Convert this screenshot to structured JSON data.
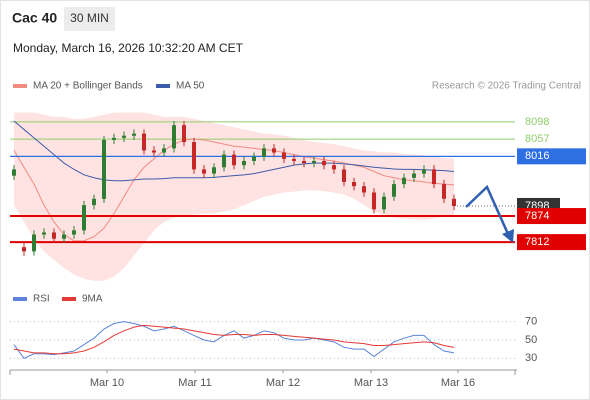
{
  "header": {
    "symbol": "Cac 40",
    "interval": "30 MIN",
    "datetime": "Monday, March 16, 2026 10:32:20 AM CET",
    "credit": "Research © 2026 Trading Central"
  },
  "chart_data": [
    {
      "type": "candlestick",
      "x": [
        0,
        1,
        2,
        3,
        4,
        5,
        6,
        7,
        8,
        9,
        10,
        11,
        12,
        13,
        14,
        15,
        16,
        17,
        18,
        19,
        20,
        21,
        22,
        23,
        24,
        25,
        26,
        27,
        28,
        29,
        30,
        31,
        32,
        33,
        34,
        35,
        36,
        37,
        38,
        39,
        40,
        41,
        42,
        43,
        44
      ],
      "xlim": [
        -0.4,
        50.1
      ],
      "ylim": [
        7710,
        8150
      ],
      "up_color": "#2e7d32",
      "down_color": "#c62828",
      "open": [
        7970,
        7800,
        7790,
        7830,
        7835,
        7820,
        7830,
        7840,
        7900,
        7915,
        8055,
        8060,
        8065,
        8070,
        8030,
        8025,
        8035,
        8090,
        8050,
        7985,
        7975,
        7990,
        8020,
        7995,
        8005,
        8015,
        8035,
        8025,
        8010,
        8005,
        8000,
        8005,
        7995,
        7985,
        7955,
        7945,
        7930,
        7890,
        7920,
        7950,
        7965,
        7975,
        7985,
        7950,
        7915
      ],
      "high": [
        7995,
        7810,
        7840,
        7845,
        7845,
        7840,
        7850,
        7910,
        7925,
        8065,
        8070,
        8075,
        8080,
        8080,
        8040,
        8045,
        8100,
        8100,
        8060,
        7995,
        8000,
        8030,
        8030,
        8015,
        8025,
        8045,
        8045,
        8035,
        8020,
        8015,
        8015,
        8015,
        8005,
        7995,
        7965,
        7955,
        7940,
        7930,
        7960,
        7975,
        7985,
        7995,
        7995,
        7960,
        7925
      ],
      "low": [
        7960,
        7780,
        7780,
        7820,
        7810,
        7810,
        7820,
        7830,
        7890,
        7905,
        8045,
        8050,
        8055,
        8020,
        8015,
        8015,
        8025,
        8040,
        7975,
        7965,
        7965,
        7980,
        7985,
        7985,
        7995,
        8005,
        8015,
        8000,
        7995,
        7990,
        7990,
        7985,
        7975,
        7945,
        7935,
        7920,
        7880,
        7880,
        7910,
        7940,
        7955,
        7965,
        7940,
        7905,
        7888
      ],
      "close": [
        7985,
        7790,
        7830,
        7835,
        7820,
        7830,
        7840,
        7900,
        7915,
        8055,
        8060,
        8065,
        8070,
        8030,
        8025,
        8035,
        8090,
        8050,
        7985,
        7975,
        7990,
        8020,
        7995,
        8005,
        8015,
        8035,
        8025,
        8010,
        8005,
        8000,
        8005,
        7995,
        7985,
        7955,
        7945,
        7930,
        7890,
        7920,
        7950,
        7965,
        7975,
        7985,
        7950,
        7915,
        7898
      ],
      "series": [
        {
          "name": "MA 20 + Bollinger Bands",
          "color": "#f28b82",
          "band_color": "#ffd6d6",
          "values": [
            8030,
            7990,
            7950,
            7900,
            7860,
            7830,
            7815,
            7815,
            7825,
            7845,
            7880,
            7920,
            7960,
            7990,
            8010,
            8030,
            8045,
            8055,
            8057,
            8055,
            8050,
            8045,
            8040,
            8038,
            8035,
            8032,
            8030,
            8025,
            8020,
            8015,
            8012,
            8008,
            8005,
            8000,
            7995,
            7990,
            7980,
            7970,
            7965,
            7960,
            7958,
            7955,
            7952,
            7950,
            7948
          ],
          "upper": [
            8120,
            8120,
            8120,
            8115,
            8110,
            8110,
            8105,
            8105,
            8110,
            8115,
            8120,
            8120,
            8120,
            8120,
            8115,
            8110,
            8110,
            8110,
            8105,
            8100,
            8095,
            8090,
            8085,
            8080,
            8075,
            8070,
            8068,
            8065,
            8060,
            8055,
            8050,
            8048,
            8045,
            8040,
            8035,
            8030,
            8028,
            8025,
            8025,
            8022,
            8020,
            8018,
            8015,
            8012,
            8010
          ],
          "lower": [
            7900,
            7860,
            7820,
            7790,
            7770,
            7750,
            7735,
            7725,
            7720,
            7720,
            7730,
            7750,
            7780,
            7810,
            7840,
            7860,
            7870,
            7875,
            7878,
            7880,
            7880,
            7885,
            7890,
            7900,
            7910,
            7920,
            7925,
            7930,
            7932,
            7935,
            7935,
            7933,
            7930,
            7925,
            7915,
            7900,
            7885,
            7875,
            7870,
            7868,
            7866,
            7865,
            7868,
            7872,
            7875
          ]
        },
        {
          "name": "MA 50",
          "color": "#3c5ba9",
          "values": [
            8100,
            8080,
            8060,
            8040,
            8020,
            8000,
            7985,
            7972,
            7965,
            7960,
            7958,
            7958,
            7960,
            7962,
            7962,
            7963,
            7965,
            7965,
            7965,
            7965,
            7966,
            7968,
            7970,
            7972,
            7975,
            7980,
            7985,
            7990,
            7995,
            7998,
            8000,
            8000,
            8000,
            7998,
            7996,
            7993,
            7990,
            7988,
            7986,
            7985,
            7985,
            7984,
            7983,
            7982,
            7980
          ]
        }
      ],
      "levels": [
        {
          "value": 8098,
          "color": "#8fce6a",
          "style": "line"
        },
        {
          "value": 8057,
          "color": "#8fce6a",
          "style": "line"
        },
        {
          "value": 8016,
          "color": "#2f6fe4",
          "style": "box"
        },
        {
          "value": 7898,
          "color": "#333333",
          "style": "current"
        },
        {
          "value": 7874,
          "color": "#e00000",
          "style": "box"
        },
        {
          "value": 7812,
          "color": "#e00000",
          "style": "box"
        }
      ]
    },
    {
      "type": "line",
      "ylim": [
        20,
        80
      ],
      "yticks": [
        30,
        50,
        70
      ],
      "xticks": [
        {
          "value": 9.3,
          "label": "Mar 10"
        },
        {
          "value": 18.1,
          "label": "Mar 11"
        },
        {
          "value": 26.9,
          "label": "Mar 12"
        },
        {
          "value": 35.7,
          "label": "Mar 13"
        },
        {
          "value": 44.4,
          "label": "Mar 16"
        }
      ],
      "series": [
        {
          "name": "RSI",
          "color": "#5b84d8",
          "values": [
            45,
            30,
            35,
            35,
            34,
            36,
            38,
            45,
            52,
            62,
            68,
            70,
            68,
            65,
            60,
            62,
            65,
            60,
            55,
            50,
            48,
            55,
            60,
            52,
            55,
            60,
            58,
            52,
            50,
            50,
            52,
            50,
            48,
            42,
            40,
            40,
            32,
            40,
            48,
            52,
            55,
            55,
            45,
            38,
            36
          ]
        },
        {
          "name": "9MA",
          "color": "#e53935",
          "values": [
            40,
            38,
            36,
            36,
            35,
            35,
            36,
            38,
            42,
            48,
            55,
            60,
            64,
            66,
            65,
            64,
            63,
            62,
            60,
            58,
            56,
            55,
            56,
            56,
            55,
            56,
            56,
            55,
            54,
            53,
            52,
            51,
            50,
            48,
            47,
            46,
            44,
            44,
            45,
            46,
            47,
            48,
            47,
            44,
            42
          ]
        }
      ]
    }
  ]
}
